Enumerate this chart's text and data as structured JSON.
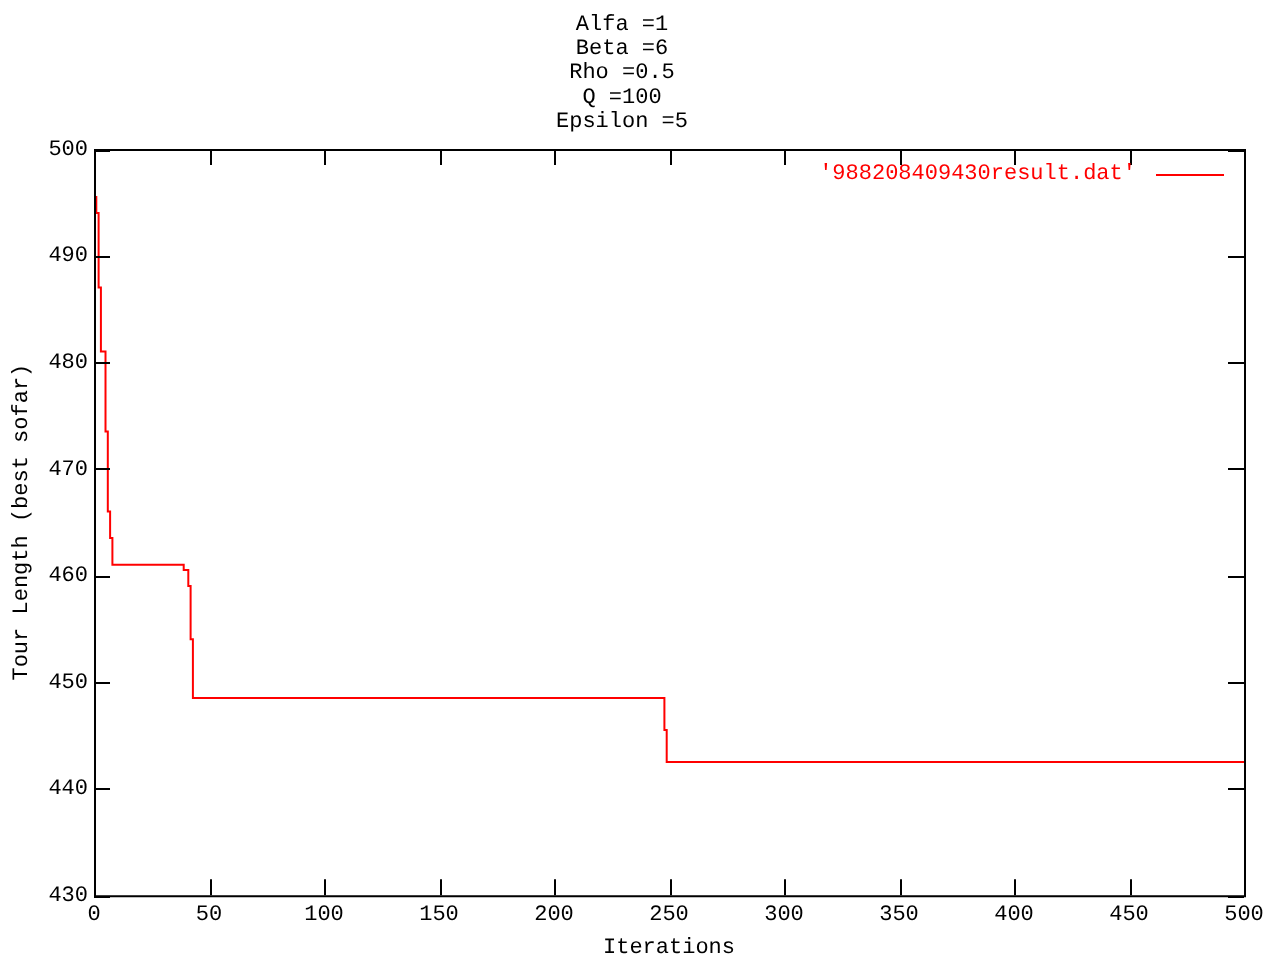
{
  "chart_data": {
    "type": "step",
    "title": "Alfa =1\nBeta =6\nRho =0.5\nQ =100\nEpsilon =5",
    "xlabel": "Iterations",
    "ylabel": "Tour Length (best sofar)",
    "series": [
      {
        "name": "'988208409430result.dat'",
        "color": "#ff0000",
        "x": [
          0,
          1,
          2,
          3,
          5,
          6,
          7,
          8,
          39,
          41,
          42,
          43,
          248,
          249,
          500
        ],
        "values": [
          495.5,
          494,
          487,
          481,
          473.5,
          466,
          463.5,
          461,
          460.5,
          459,
          454,
          448.5,
          445.5,
          442.5,
          442.5
        ]
      }
    ],
    "xlim": [
      0,
      500
    ],
    "xticks": [
      0,
      50,
      100,
      150,
      200,
      250,
      300,
      350,
      400,
      450,
      500
    ],
    "ylim": [
      430,
      500
    ],
    "yticks": [
      430,
      440,
      450,
      460,
      470,
      480,
      490,
      500
    ],
    "grid": false,
    "legend": "top right"
  }
}
